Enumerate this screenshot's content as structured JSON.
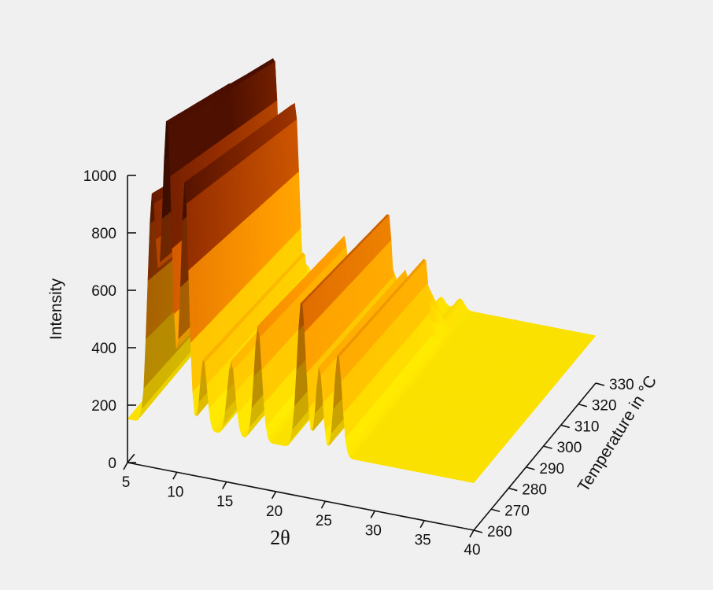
{
  "chart_data": {
    "type": "area",
    "title": "",
    "xlabel": "2θ",
    "ylabel": "Temperature in °C",
    "zlabel": "Intensity",
    "x_ticks": [
      "5",
      "10",
      "15",
      "20",
      "25",
      "30",
      "35",
      "40"
    ],
    "y_ticks": [
      "260",
      "270",
      "280",
      "290",
      "300",
      "310",
      "320",
      "330"
    ],
    "z_ticks": [
      "0",
      "200",
      "400",
      "600",
      "800",
      "1000"
    ],
    "xlim": [
      5,
      40
    ],
    "ylim": [
      260,
      330
    ],
    "zlim": [
      0,
      1000
    ],
    "colormap": [
      "#ffe600",
      "#ffc400",
      "#f59a00",
      "#c85500",
      "#8a2a00",
      "#4a0f00"
    ],
    "baseline": 165,
    "peaks": [
      {
        "two_theta": 7.5,
        "width": 0.45,
        "low_temp_intensity": 780,
        "high_temp_intensity": 250,
        "transition_temp": 296
      },
      {
        "two_theta": 9.0,
        "width": 0.5,
        "low_temp_intensity": 1060,
        "high_temp_intensity": 140,
        "transition_temp": 322
      },
      {
        "two_theta": 10.8,
        "width": 0.4,
        "low_temp_intensity": 850,
        "high_temp_intensity": 100,
        "transition_temp": 324
      },
      {
        "two_theta": 12.7,
        "width": 0.35,
        "low_temp_intensity": 250,
        "high_temp_intensity": 60,
        "transition_temp": 318
      },
      {
        "two_theta": 15.5,
        "width": 0.4,
        "low_temp_intensity": 260,
        "high_temp_intensity": 150,
        "transition_temp": 310
      },
      {
        "two_theta": 18.2,
        "width": 0.4,
        "low_temp_intensity": 400,
        "high_temp_intensity": 200,
        "transition_temp": 310
      },
      {
        "two_theta": 22.6,
        "width": 0.45,
        "low_temp_intensity": 520,
        "high_temp_intensity": 300,
        "transition_temp": 310
      },
      {
        "two_theta": 24.4,
        "width": 0.35,
        "low_temp_intensity": 300,
        "high_temp_intensity": 200,
        "transition_temp": 310
      },
      {
        "two_theta": 26.3,
        "width": 0.4,
        "low_temp_intensity": 360,
        "high_temp_intensity": 250,
        "transition_temp": 310
      }
    ]
  }
}
